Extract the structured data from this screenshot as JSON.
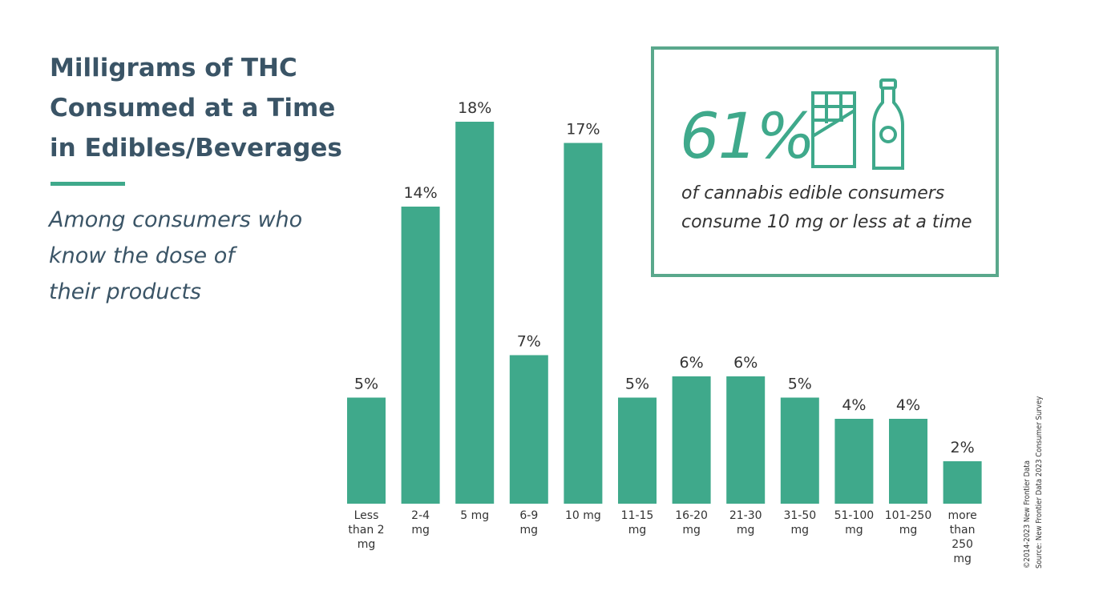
{
  "title": {
    "line1": "Milligrams of THC",
    "line2": "Consumed at a Time",
    "line3": "in Edibles/Beverages"
  },
  "subtitle": {
    "line1": "Among consumers who",
    "line2": "know the dose of",
    "line3": "their products"
  },
  "callout": {
    "big_value": "61%",
    "text_line1": "of cannabis edible consumers",
    "text_line2": "consume 10 mg or less at a time",
    "icons": [
      "chocolate-bar-icon",
      "bottle-icon"
    ]
  },
  "source": {
    "copyright": "©2014-2023  New Frontier Data",
    "source": "Source: New Frontier Data 2023 Consumer Survey"
  },
  "colors": {
    "bar": "#3fa98b",
    "title": "#3a5466",
    "text": "#333333"
  },
  "chart_data": {
    "type": "bar",
    "categories": [
      [
        "Less",
        "than 2",
        "mg"
      ],
      [
        "2-4",
        "mg"
      ],
      [
        "5 mg"
      ],
      [
        "6-9",
        "mg"
      ],
      [
        "10 mg"
      ],
      [
        "11-15",
        "mg"
      ],
      [
        "16-20",
        "mg"
      ],
      [
        "21-30",
        "mg"
      ],
      [
        "31-50",
        "mg"
      ],
      [
        "51-100",
        "mg"
      ],
      [
        "101-250",
        "mg"
      ],
      [
        "more",
        "than",
        "250",
        "mg"
      ]
    ],
    "values": [
      5,
      14,
      18,
      7,
      17,
      5,
      6,
      6,
      5,
      4,
      4,
      2
    ],
    "labels": [
      "5%",
      "14%",
      "18%",
      "7%",
      "17%",
      "5%",
      "6%",
      "6%",
      "5%",
      "4%",
      "4%",
      "2%"
    ],
    "unit": "%",
    "ylim": [
      0,
      18
    ],
    "grid": false,
    "legend": "none"
  }
}
